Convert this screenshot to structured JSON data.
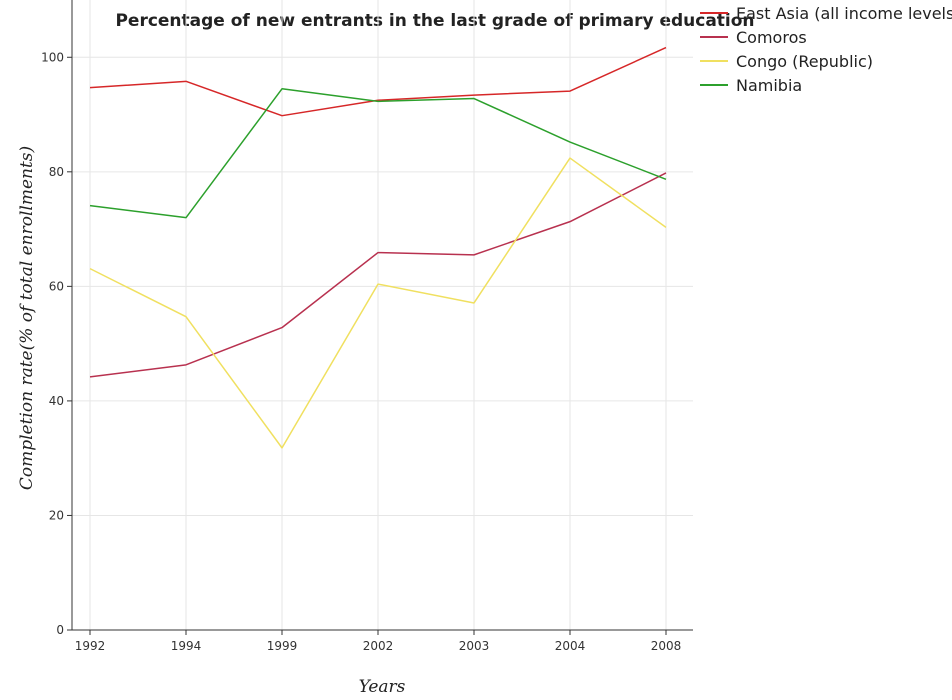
{
  "chart_data": {
    "type": "line",
    "title": "Percentage of new entrants in the last grade of primary education",
    "xlabel": "Years",
    "ylabel": "Completion rate(% of total enrollments)",
    "categories": [
      "1992",
      "1994",
      "1999",
      "2002",
      "2003",
      "2004",
      "2008"
    ],
    "ylim": [
      0,
      110
    ],
    "yticks": [
      0,
      20,
      40,
      60,
      80,
      100
    ],
    "grid": true,
    "legend_position": "top-right",
    "series": [
      {
        "name": "East Asia (all income levels)",
        "color": "#d62728",
        "values": [
          94.7,
          95.8,
          89.8,
          92.5,
          93.4,
          94.1,
          101.7
        ]
      },
      {
        "name": "Comoros",
        "color": "#b8314f",
        "values": [
          44.2,
          46.3,
          52.8,
          65.9,
          65.5,
          71.3,
          79.8
        ]
      },
      {
        "name": "Congo (Republic)",
        "color": "#f0e060",
        "values": [
          63.1,
          54.7,
          31.8,
          60.4,
          57.1,
          82.4,
          70.3
        ]
      },
      {
        "name": "Namibia",
        "color": "#2ca02c",
        "values": [
          74.1,
          72.0,
          94.5,
          92.3,
          92.8,
          85.2,
          78.7
        ]
      }
    ]
  }
}
